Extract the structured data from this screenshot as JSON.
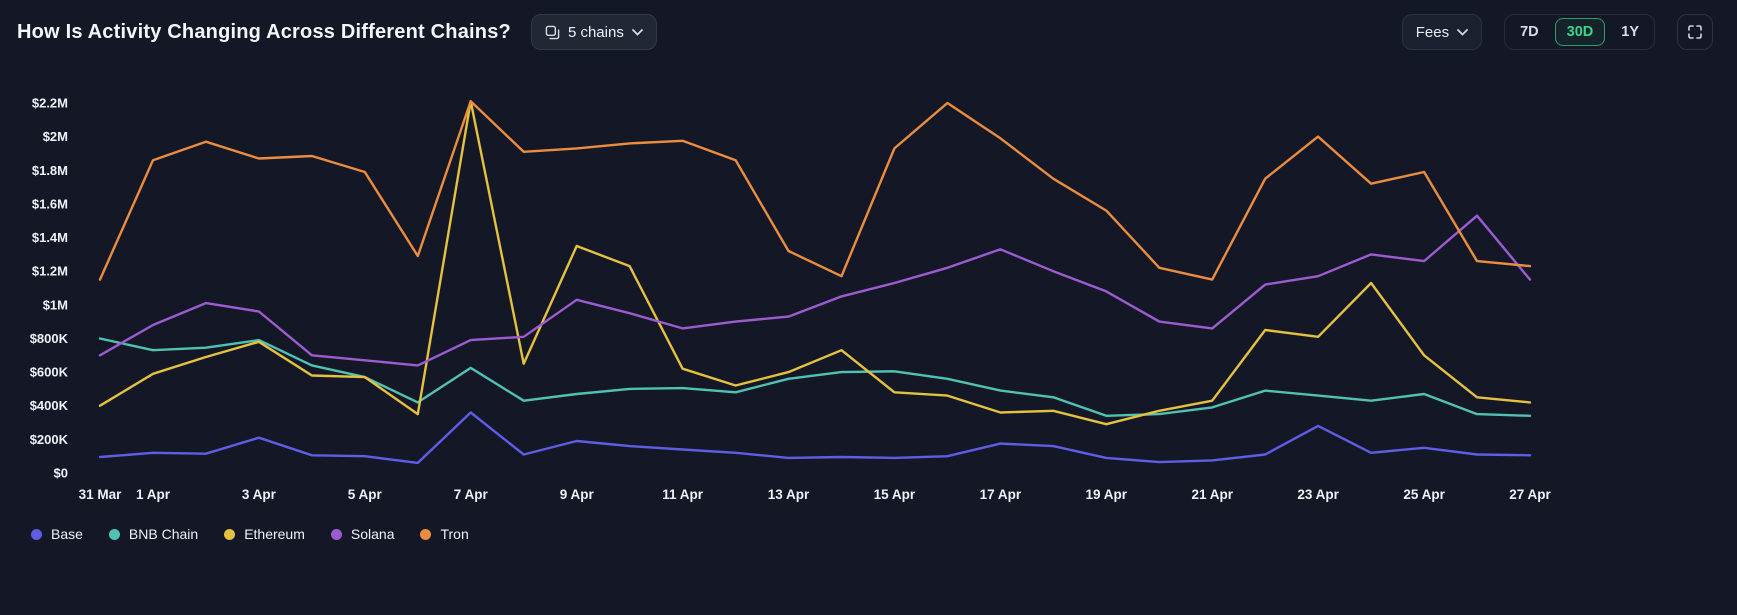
{
  "header": {
    "title": "How Is Activity Changing Across Different Chains?",
    "chains_button": {
      "label": "5 chains",
      "icon": "chains-icon",
      "chevron": "chevron-down-icon"
    },
    "fees_button": {
      "label": "Fees",
      "chevron": "chevron-down-icon"
    },
    "time_ranges": [
      {
        "label": "7D",
        "selected": false
      },
      {
        "label": "30D",
        "selected": true
      },
      {
        "label": "1Y",
        "selected": false
      }
    ],
    "fullscreen_icon": "fullscreen-icon"
  },
  "colors": {
    "background": "#141826",
    "accent_green": "#3bd68c",
    "base": "#5f5ce6",
    "bnb_chain": "#4fc2b4",
    "ethereum": "#e4c13e",
    "solana": "#9d5bd2",
    "tron": "#ec8d3d"
  },
  "chart_data": {
    "type": "line",
    "title": "How Is Activity Changing Across Different Chains?",
    "metric": "Fees",
    "grid": false,
    "legend_position": "bottom-left",
    "ylim": [
      0,
      2200000
    ],
    "y_ticks": [
      {
        "value": 0,
        "label": "$0"
      },
      {
        "value": 200000,
        "label": "$200K"
      },
      {
        "value": 400000,
        "label": "$400K"
      },
      {
        "value": 600000,
        "label": "$600K"
      },
      {
        "value": 800000,
        "label": "$800K"
      },
      {
        "value": 1000000,
        "label": "$1M"
      },
      {
        "value": 1200000,
        "label": "$1.2M"
      },
      {
        "value": 1400000,
        "label": "$1.4M"
      },
      {
        "value": 1600000,
        "label": "$1.6M"
      },
      {
        "value": 1800000,
        "label": "$1.8M"
      },
      {
        "value": 2000000,
        "label": "$2M"
      },
      {
        "value": 2200000,
        "label": "$2.2M"
      }
    ],
    "categories": [
      "31 Mar",
      "1 Apr",
      "2 Apr",
      "3 Apr",
      "4 Apr",
      "5 Apr",
      "6 Apr",
      "7 Apr",
      "8 Apr",
      "9 Apr",
      "10 Apr",
      "11 Apr",
      "12 Apr",
      "13 Apr",
      "14 Apr",
      "15 Apr",
      "16 Apr",
      "17 Apr",
      "18 Apr",
      "19 Apr",
      "20 Apr",
      "21 Apr",
      "22 Apr",
      "23 Apr",
      "24 Apr",
      "25 Apr",
      "26 Apr",
      "27 Apr"
    ],
    "x_tick_indices": [
      0,
      1,
      3,
      5,
      7,
      9,
      11,
      13,
      15,
      17,
      19,
      21,
      23,
      25,
      27
    ],
    "series": [
      {
        "name": "Base",
        "color": "#5f5ce6",
        "values": [
          95000,
          120000,
          115000,
          210000,
          105000,
          100000,
          60000,
          360000,
          110000,
          190000,
          160000,
          140000,
          120000,
          90000,
          95000,
          90000,
          100000,
          175000,
          160000,
          90000,
          65000,
          75000,
          110000,
          280000,
          120000,
          150000,
          110000,
          105000
        ]
      },
      {
        "name": "BNB Chain",
        "color": "#4fc2b4",
        "values": [
          800000,
          730000,
          745000,
          790000,
          640000,
          570000,
          420000,
          625000,
          430000,
          470000,
          500000,
          505000,
          480000,
          560000,
          600000,
          605000,
          560000,
          490000,
          450000,
          340000,
          350000,
          390000,
          490000,
          460000,
          430000,
          470000,
          350000,
          340000
        ]
      },
      {
        "name": "Ethereum",
        "color": "#e4c13e",
        "values": [
          400000,
          590000,
          690000,
          780000,
          580000,
          570000,
          350000,
          2210000,
          650000,
          1350000,
          1230000,
          620000,
          520000,
          600000,
          730000,
          480000,
          460000,
          360000,
          370000,
          290000,
          370000,
          430000,
          850000,
          810000,
          1130000,
          700000,
          450000,
          420000
        ]
      },
      {
        "name": "Solana",
        "color": "#9d5bd2",
        "values": [
          700000,
          880000,
          1010000,
          960000,
          700000,
          670000,
          640000,
          790000,
          810000,
          1030000,
          950000,
          860000,
          900000,
          930000,
          1050000,
          1130000,
          1220000,
          1330000,
          1200000,
          1080000,
          900000,
          860000,
          1120000,
          1170000,
          1300000,
          1260000,
          1530000,
          1150000
        ]
      },
      {
        "name": "Tron",
        "color": "#ec8d3d",
        "values": [
          1150000,
          1860000,
          1970000,
          1870000,
          1885000,
          1790000,
          1290000,
          2210000,
          1910000,
          1930000,
          1960000,
          1975000,
          1860000,
          1320000,
          1170000,
          1930000,
          2200000,
          1990000,
          1750000,
          1560000,
          1220000,
          1150000,
          1750000,
          2000000,
          1720000,
          1790000,
          1260000,
          1230000
        ]
      }
    ]
  }
}
